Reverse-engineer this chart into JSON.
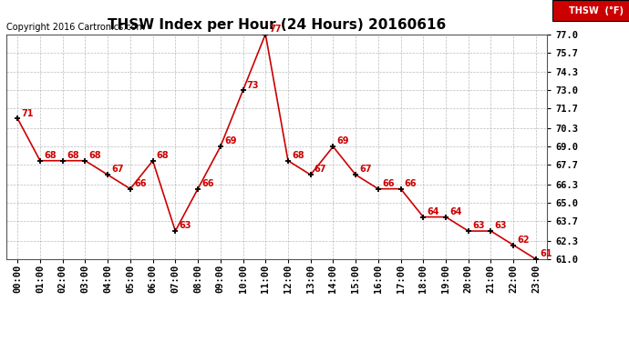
{
  "title": "THSW Index per Hour (24 Hours) 20160616",
  "copyright": "Copyright 2016 Cartronics.com",
  "legend_label": "THSW  (°F)",
  "hours": [
    0,
    1,
    2,
    3,
    4,
    5,
    6,
    7,
    8,
    9,
    10,
    11,
    12,
    13,
    14,
    15,
    16,
    17,
    18,
    19,
    20,
    21,
    22,
    23
  ],
  "values": [
    71,
    68,
    68,
    68,
    67,
    66,
    68,
    63,
    66,
    69,
    73,
    77,
    68,
    67,
    69,
    67,
    66,
    66,
    64,
    64,
    63,
    63,
    62,
    61
  ],
  "xlabels": [
    "00:00",
    "01:00",
    "02:00",
    "03:00",
    "04:00",
    "05:00",
    "06:00",
    "07:00",
    "08:00",
    "09:00",
    "10:00",
    "11:00",
    "12:00",
    "13:00",
    "14:00",
    "15:00",
    "16:00",
    "17:00",
    "18:00",
    "19:00",
    "20:00",
    "21:00",
    "22:00",
    "23:00"
  ],
  "ylim": [
    61.0,
    77.0
  ],
  "yticks": [
    61.0,
    62.3,
    63.7,
    65.0,
    66.3,
    67.7,
    69.0,
    70.3,
    71.7,
    73.0,
    74.3,
    75.7,
    77.0
  ],
  "line_color": "#cc0000",
  "marker_color": "#000000",
  "label_color": "#cc0000",
  "bg_color": "#ffffff",
  "grid_color": "#aaaaaa",
  "title_fontsize": 11,
  "copyright_fontsize": 7,
  "label_fontsize": 7,
  "tick_fontsize": 7.5,
  "legend_bg": "#cc0000",
  "legend_text_color": "#ffffff"
}
